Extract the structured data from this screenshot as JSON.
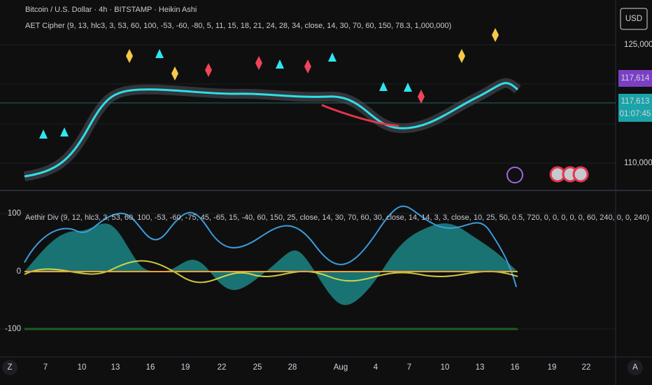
{
  "header": {
    "symbol": "Bitcoin / U.S. Dollar · 4h · BITSTAMP · Heikin Ashi",
    "indicator": "AET Cipher (9, 13, hlc3, 3, 53, 60, 100, -53, -60, -80, 5, 11, 15, 18, 21, 24, 28, 34, close, 14, 30, 70, 60, 150, 78.3, 1,000,000)"
  },
  "price_axis": {
    "currency": "USD",
    "labels": [
      "125,000",
      "110,000"
    ],
    "last_price": "117,614",
    "current_price": "117,613",
    "countdown": "01:07:45"
  },
  "oscillator": {
    "title": "Aethir Div (9, 12, hlc3, 3, 53, 60, 100, -53, -60, -75, 45, -65, 15, -40, 60, 150, 25, close, 14, 30, 70, 60, 30, close, 14, 14, 3, 3, close, 10, 25, 50, 0.5, 720, 0, 0, 0, 0, 0, 60, 240, 0, 0, 240)",
    "labels": [
      "100",
      "0",
      "-100"
    ]
  },
  "time_axis": {
    "labels": [
      "7",
      "10",
      "13",
      "16",
      "19",
      "22",
      "25",
      "28",
      "Aug",
      "4",
      "7",
      "10",
      "13",
      "16",
      "19",
      "22"
    ],
    "buttons": [
      "Z",
      "A"
    ]
  }
}
